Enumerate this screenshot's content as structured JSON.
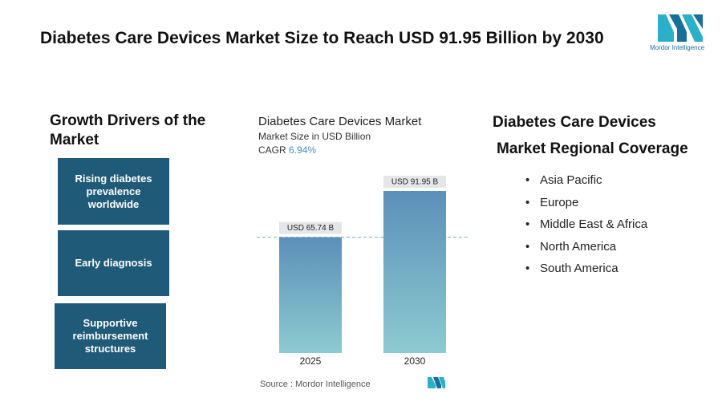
{
  "title": "Diabetes Care Devices Market Size to Reach USD 91.95 Billion by 2030",
  "logo_text": "Mordor Intelligence",
  "drivers": {
    "heading": "Growth Drivers of the Market",
    "items": [
      "Rising diabetes prevalence worldwide",
      "Early diagnosis",
      "Supportive reimbursement structures"
    ]
  },
  "regions": {
    "heading": [
      "Diabetes Care Devices",
      "Market Regional Coverage"
    ],
    "bullet": "•",
    "items": [
      "Asia Pacific",
      "Europe",
      "Middle East & Africa",
      "North America",
      "South America"
    ]
  },
  "chart_data": {
    "type": "bar",
    "title": "Diabetes Care Devices Market",
    "subtitle": "Market Size in USD Billion",
    "cagr_label": "CAGR",
    "cagr_value": "6.94%",
    "categories": [
      "2025",
      "2030"
    ],
    "values": [
      65.74,
      91.95
    ],
    "value_labels": [
      "USD 65.74 B",
      "USD 91.95 B"
    ],
    "source": "Source : Mordor Intelligence"
  }
}
